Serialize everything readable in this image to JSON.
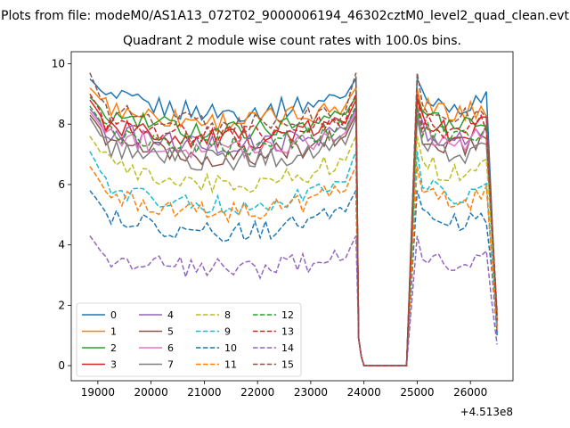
{
  "figure": {
    "suptitle": "Plots from file: modeM0/AS1A13_072T02_9000006194_46302cztM0_level2_quad_clean.evt"
  },
  "chart_data": {
    "type": "line",
    "title": "Quadrant 2 module wise count rates with 100.0s bins.",
    "xlabel": "",
    "ylabel": "",
    "x_offset_label": "+4.513e8",
    "xlim": [
      18500,
      26800
    ],
    "ylim": [
      -0.5,
      10.4
    ],
    "x_ticks": [
      19000,
      20000,
      21000,
      22000,
      23000,
      24000,
      25000,
      26000
    ],
    "x_tick_labels": [
      "19000",
      "20000",
      "21000",
      "22000",
      "23000",
      "24000",
      "25000",
      "26000"
    ],
    "y_ticks": [
      0,
      2,
      4,
      6,
      8,
      10
    ],
    "y_tick_labels": [
      "0",
      "2",
      "4",
      "6",
      "8",
      "10"
    ],
    "grid": false,
    "legend_position": "lower-left",
    "legend_columns": 4,
    "x_segments": [
      {
        "start": 18850,
        "end": 23850,
        "step": 100
      },
      {
        "start": 24000,
        "end": 24850,
        "step": 100
      },
      {
        "start": 25000,
        "end": 26550,
        "step": 100
      }
    ],
    "series": [
      {
        "name": "0",
        "color": "#1f77b4",
        "dash": "solid",
        "level": 9.0,
        "valley": 8.4,
        "edge": 9.5,
        "dip_end": 1.0
      },
      {
        "name": "1",
        "color": "#ff7f0e",
        "dash": "solid",
        "level": 8.7,
        "valley": 8.1,
        "edge": 9.2,
        "dip_end": 1.2
      },
      {
        "name": "2",
        "color": "#2ca02c",
        "dash": "solid",
        "level": 8.4,
        "valley": 7.8,
        "edge": 8.9,
        "dip_end": 1.5
      },
      {
        "name": "3",
        "color": "#d62728",
        "dash": "solid",
        "level": 8.1,
        "valley": 7.5,
        "edge": 8.8,
        "dip_end": 1.4
      },
      {
        "name": "4",
        "color": "#9467bd",
        "dash": "solid",
        "level": 7.9,
        "valley": 7.3,
        "edge": 8.5,
        "dip_end": 1.3
      },
      {
        "name": "5",
        "color": "#8c564b",
        "dash": "solid",
        "level": 7.7,
        "valley": 6.9,
        "edge": 8.3,
        "dip_end": 1.6
      },
      {
        "name": "6",
        "color": "#e377c2",
        "dash": "solid",
        "level": 7.8,
        "valley": 7.2,
        "edge": 8.4,
        "dip_end": 1.5
      },
      {
        "name": "7",
        "color": "#7f7f7f",
        "dash": "solid",
        "level": 7.4,
        "valley": 6.8,
        "edge": 8.2,
        "dip_end": 1.7
      },
      {
        "name": "8",
        "color": "#bcbd22",
        "dash": "dashed",
        "level": 6.9,
        "valley": 6.0,
        "edge": 7.6,
        "dip_end": 1.5
      },
      {
        "name": "9",
        "color": "#17becf",
        "dash": "dashed",
        "level": 6.2,
        "valley": 5.3,
        "edge": 7.1,
        "dip_end": 1.3
      },
      {
        "name": "10",
        "color": "#1f77b4",
        "dash": "dashed",
        "level": 5.2,
        "valley": 4.4,
        "edge": 5.8,
        "dip_end": 1.1
      },
      {
        "name": "11",
        "color": "#ff7f0e",
        "dash": "dashed",
        "level": 5.9,
        "valley": 5.1,
        "edge": 6.6,
        "dip_end": 1.3
      },
      {
        "name": "12",
        "color": "#2ca02c",
        "dash": "dashed",
        "level": 7.9,
        "valley": 7.3,
        "edge": 8.6,
        "dip_end": 1.6
      },
      {
        "name": "13",
        "color": "#d62728",
        "dash": "dashed",
        "level": 8.2,
        "valley": 7.6,
        "edge": 9.0,
        "dip_end": 1.5
      },
      {
        "name": "14",
        "color": "#9467bd",
        "dash": "dashed",
        "level": 3.6,
        "valley": 3.2,
        "edge": 4.3,
        "dip_end": 0.7
      },
      {
        "name": "15",
        "color": "#8c564b",
        "dash": "dashed",
        "level": 8.5,
        "valley": 8.0,
        "edge": 9.7,
        "dip_end": 1.8
      }
    ]
  }
}
